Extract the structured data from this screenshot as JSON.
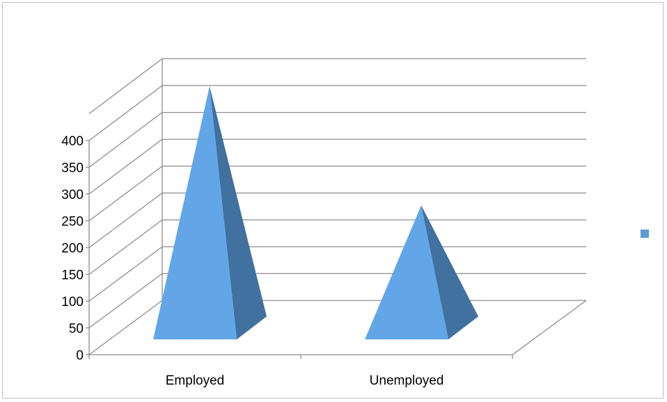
{
  "chart_data": {
    "type": "bar",
    "style": "3d-pyramid",
    "categories": [
      "Employed",
      "Unemployed"
    ],
    "series": [
      {
        "values": [
          399,
          177
        ]
      }
    ],
    "ylim": [
      0,
      400
    ],
    "yticks": [
      "0",
      "50",
      "100",
      "150",
      "200",
      "250",
      "300",
      "350",
      "400"
    ],
    "grid": true,
    "legend": "right",
    "colors": {
      "face": "#62a6e8",
      "side": "#41719e",
      "grid": "#8c8c8c",
      "legend": "#5b9bd5"
    }
  }
}
